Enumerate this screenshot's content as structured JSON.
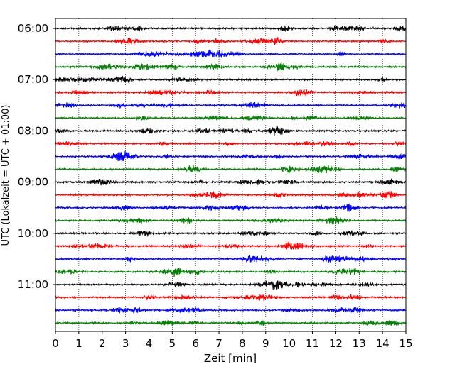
{
  "chart_data": {
    "type": "line",
    "title": "",
    "xlabel": "Zeit  [min]",
    "ylabel": "UTC (Lokalzeit = UTC + 01:00)",
    "xlim": [
      0,
      15
    ],
    "x_ticks": [
      0,
      1,
      2,
      3,
      4,
      5,
      6,
      7,
      8,
      9,
      10,
      11,
      12,
      13,
      14,
      15
    ],
    "y_ticks": [
      "06:00",
      "07:00",
      "08:00",
      "09:00",
      "10:00",
      "11:00"
    ],
    "grid": "vertical dotted lines at each minute",
    "trace_interval_min": 15,
    "trace_colors": [
      "#000000",
      "#ff0000",
      "#0000ff",
      "#007f00"
    ],
    "traces": [
      {
        "start": "06:00",
        "color": "#000000"
      },
      {
        "start": "06:15",
        "color": "#ff0000"
      },
      {
        "start": "06:30",
        "color": "#0000ff"
      },
      {
        "start": "06:45",
        "color": "#007f00"
      },
      {
        "start": "07:00",
        "color": "#000000"
      },
      {
        "start": "07:15",
        "color": "#ff0000"
      },
      {
        "start": "07:30",
        "color": "#0000ff"
      },
      {
        "start": "07:45",
        "color": "#007f00"
      },
      {
        "start": "08:00",
        "color": "#000000"
      },
      {
        "start": "08:15",
        "color": "#ff0000"
      },
      {
        "start": "08:30",
        "color": "#0000ff"
      },
      {
        "start": "08:45",
        "color": "#007f00"
      },
      {
        "start": "09:00",
        "color": "#000000"
      },
      {
        "start": "09:15",
        "color": "#ff0000"
      },
      {
        "start": "09:30",
        "color": "#0000ff"
      },
      {
        "start": "09:45",
        "color": "#007f00"
      },
      {
        "start": "10:00",
        "color": "#000000"
      },
      {
        "start": "10:15",
        "color": "#ff0000"
      },
      {
        "start": "10:30",
        "color": "#0000ff"
      },
      {
        "start": "10:45",
        "color": "#007f00"
      },
      {
        "start": "11:00",
        "color": "#000000"
      },
      {
        "start": "11:15",
        "color": "#ff0000"
      },
      {
        "start": "11:30",
        "color": "#0000ff"
      },
      {
        "start": "11:45",
        "color": "#007f00"
      }
    ]
  }
}
